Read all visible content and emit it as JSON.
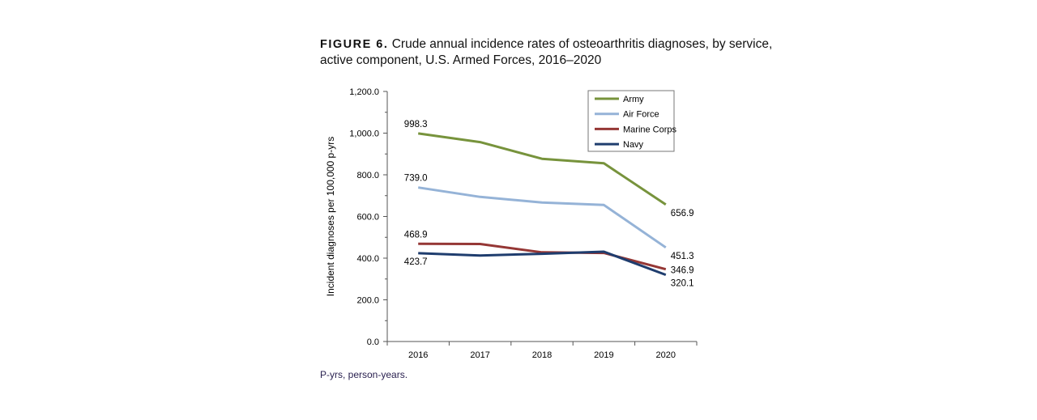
{
  "caption": {
    "figure_label": "FIGURE 6.",
    "text": "Crude annual incidence rates of osteoarthritis diagnoses, by service, active component, U.S. Armed Forces, 2016–2020"
  },
  "footnote": "P-yrs, person-years.",
  "chart_data": {
    "type": "line",
    "title": "Crude annual incidence rates of osteoarthritis diagnoses, by service, active component, U.S. Armed Forces, 2016–2020",
    "xlabel": "",
    "ylabel": "Incident diagnoses per 100,000 p-yrs",
    "categories": [
      "2016",
      "2017",
      "2018",
      "2019",
      "2020"
    ],
    "ylim": [
      0,
      1200
    ],
    "yticks": [
      0,
      200,
      400,
      600,
      800,
      1000,
      1200
    ],
    "ytick_labels": [
      "0.0",
      "200.0",
      "400.0",
      "600.0",
      "800.0",
      "1,000.0",
      "1,200.0"
    ],
    "grid": false,
    "legend_position": "top-right",
    "series": [
      {
        "name": "Army",
        "color": "#77933c",
        "values": [
          998.3,
          957,
          877,
          855,
          656.9
        ],
        "start_label": "998.3",
        "end_label": "656.9"
      },
      {
        "name": "Air Force",
        "color": "#95b3d7",
        "values": [
          739.0,
          694,
          667,
          655,
          451.3
        ],
        "start_label": "739.0",
        "end_label": "451.3"
      },
      {
        "name": "Marine Corps",
        "color": "#953735",
        "values": [
          468.9,
          468,
          428,
          425,
          346.9
        ],
        "start_label": "468.9",
        "end_label": "346.9"
      },
      {
        "name": "Navy",
        "color": "#1f3d6e",
        "values": [
          423.7,
          413,
          421,
          431,
          320.1
        ],
        "start_label": "423.7",
        "end_label": "320.1"
      }
    ]
  }
}
